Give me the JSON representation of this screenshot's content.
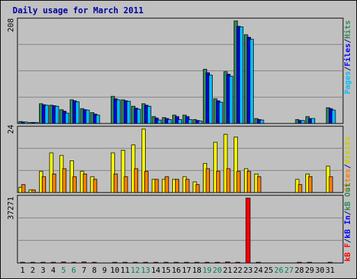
{
  "chart_data": [
    {
      "type": "bar",
      "title": "Daily usage for March 2011",
      "ymax_label": "208",
      "ylim": [
        0,
        208
      ],
      "categories": [
        "1",
        "2",
        "3",
        "4",
        "5",
        "6",
        "7",
        "8",
        "9",
        "10",
        "11",
        "12",
        "13",
        "14",
        "15",
        "16",
        "17",
        "18",
        "19",
        "20",
        "21",
        "22",
        "23",
        "24",
        "25",
        "26",
        "27",
        "28",
        "29",
        "30",
        "31"
      ],
      "weekend_days": [
        "5",
        "6",
        "12",
        "13",
        "19",
        "20",
        "26",
        "27"
      ],
      "legend": [
        "Pages",
        "/",
        "Files",
        "/",
        "Hits"
      ],
      "series": [
        {
          "name": "Hits",
          "color": "#2e8b57",
          "values": [
            4,
            2,
            40,
            37,
            28,
            48,
            30,
            22,
            0,
            55,
            48,
            35,
            40,
            14,
            12,
            17,
            17,
            8,
            110,
            50,
            105,
            208,
            180,
            10,
            0,
            0,
            0,
            8,
            14,
            0,
            32
          ]
        },
        {
          "name": "Files",
          "color": "#0000ff",
          "values": [
            3,
            2,
            38,
            36,
            25,
            46,
            28,
            19,
            0,
            50,
            46,
            31,
            37,
            11,
            10,
            14,
            14,
            6,
            103,
            46,
            100,
            197,
            175,
            8,
            0,
            0,
            0,
            6,
            10,
            0,
            30
          ]
        },
        {
          "name": "Pages",
          "color": "#00bfff",
          "values": [
            3,
            2,
            37,
            35,
            21,
            44,
            27,
            17,
            0,
            48,
            45,
            29,
            35,
            7,
            8,
            8,
            8,
            5,
            98,
            43,
            96,
            196,
            171,
            7,
            0,
            0,
            0,
            6,
            10,
            0,
            27
          ]
        }
      ]
    },
    {
      "type": "bar",
      "ymax_label": "24",
      "ylim": [
        0,
        24
      ],
      "categories": [
        "1",
        "2",
        "3",
        "4",
        "5",
        "6",
        "7",
        "8",
        "9",
        "10",
        "11",
        "12",
        "13",
        "14",
        "15",
        "16",
        "17",
        "18",
        "19",
        "20",
        "21",
        "22",
        "23",
        "24",
        "25",
        "26",
        "27",
        "28",
        "29",
        "30",
        "31"
      ],
      "legend": [
        "Visits",
        "/",
        "Sites"
      ],
      "series": [
        {
          "name": "Visits",
          "color": "#ffff00",
          "values": [
            2,
            1,
            8,
            15,
            14,
            12,
            8,
            6,
            0,
            15,
            16,
            18,
            24,
            5,
            5,
            5,
            6,
            4,
            11,
            19,
            22,
            21,
            9,
            7,
            0,
            0,
            0,
            5,
            7,
            0,
            10
          ]
        },
        {
          "name": "Sites",
          "color": "#ff8000",
          "values": [
            3,
            1,
            6,
            7,
            9,
            6,
            7,
            5,
            0,
            7,
            6,
            9,
            8,
            5,
            6,
            5,
            5,
            3,
            9,
            8,
            9,
            8,
            8,
            6,
            0,
            0,
            0,
            3,
            6,
            0,
            6
          ]
        }
      ]
    },
    {
      "type": "bar",
      "ymax_label": "37271",
      "ylim": [
        0,
        37271
      ],
      "categories": [
        "1",
        "2",
        "3",
        "4",
        "5",
        "6",
        "7",
        "8",
        "9",
        "10",
        "11",
        "12",
        "13",
        "14",
        "15",
        "16",
        "17",
        "18",
        "19",
        "20",
        "21",
        "22",
        "23",
        "24",
        "25",
        "26",
        "27",
        "28",
        "29",
        "30",
        "31"
      ],
      "legend": [
        "kB F",
        "/",
        "kB In",
        "/",
        "kB Out"
      ],
      "series": [
        {
          "name": "kB F",
          "color": "#ff0000",
          "values": [
            300,
            300,
            300,
            300,
            600,
            300,
            600,
            300,
            0,
            300,
            300,
            300,
            300,
            300,
            300,
            300,
            300,
            300,
            300,
            300,
            600,
            300,
            37271,
            300,
            0,
            0,
            0,
            300,
            300,
            0,
            300
          ]
        }
      ]
    }
  ],
  "colors": {
    "panel_bg": "#c0c0c0",
    "grid": "#808080",
    "weekday": "#000000",
    "weekend": "#00805c"
  }
}
